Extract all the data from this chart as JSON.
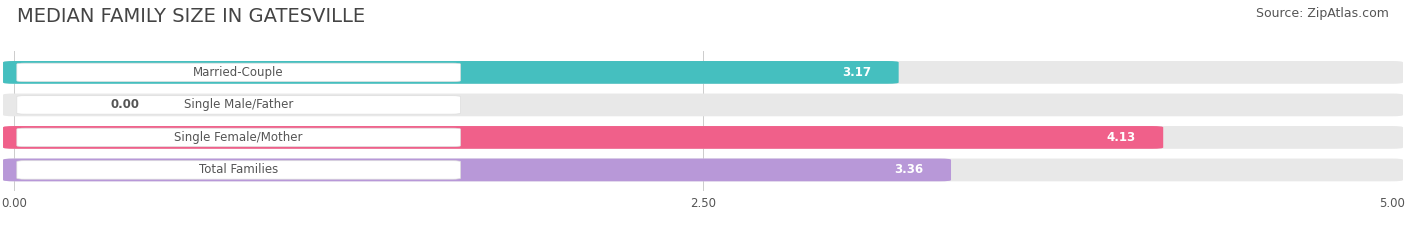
{
  "title": "MEDIAN FAMILY SIZE IN GATESVILLE",
  "source": "Source: ZipAtlas.com",
  "categories": [
    "Married-Couple",
    "Single Male/Father",
    "Single Female/Mother",
    "Total Families"
  ],
  "values": [
    3.17,
    0.0,
    4.13,
    3.36
  ],
  "bar_colors": [
    "#45bfbf",
    "#9ab0e0",
    "#f0608a",
    "#b898d8"
  ],
  "background_color": "#ffffff",
  "bar_bg_color": "#e8e8e8",
  "xlim": [
    0,
    5.0
  ],
  "xticks": [
    0.0,
    2.5,
    5.0
  ],
  "xlabel_labels": [
    "0.00",
    "2.50",
    "5.00"
  ],
  "title_fontsize": 14,
  "source_fontsize": 9,
  "label_fontsize": 8.5,
  "value_fontsize": 8.5,
  "label_text_color": "#555555",
  "value_text_color_inside": "#ffffff",
  "value_text_color_outside": "#555555"
}
